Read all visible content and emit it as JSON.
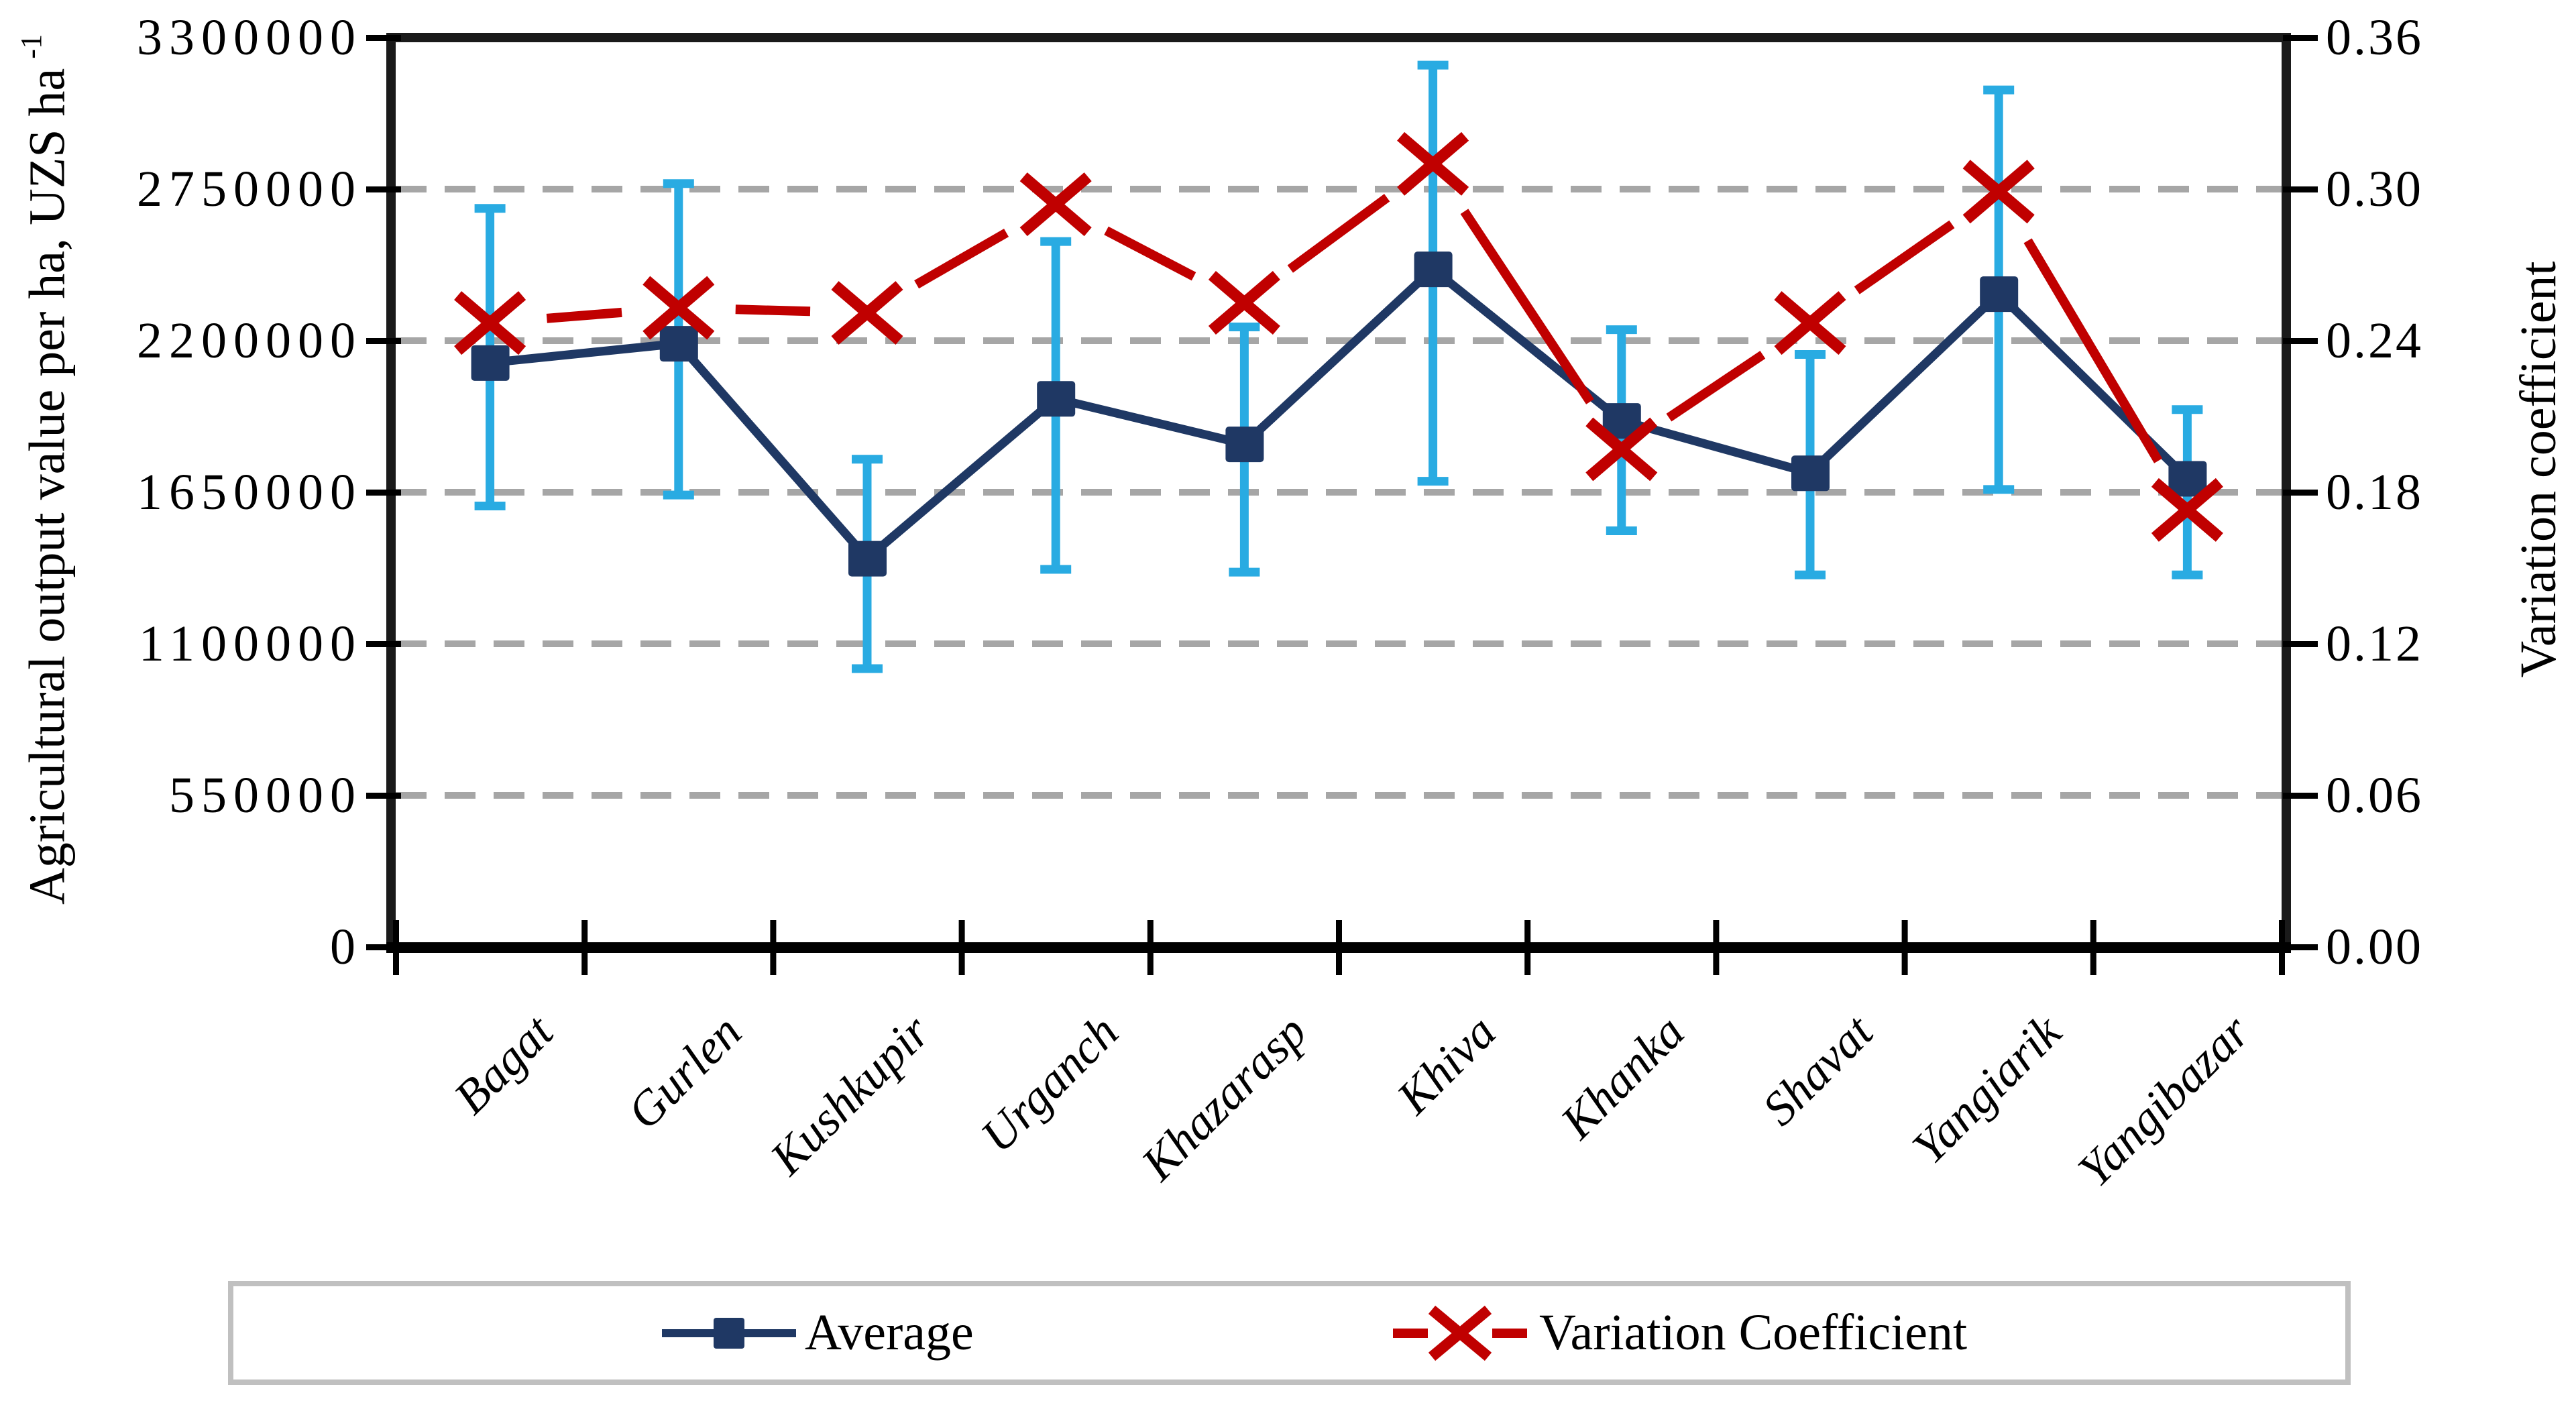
{
  "page": {
    "background": "#FFFFFF"
  },
  "chart_data": {
    "type": "line",
    "title": "",
    "categories": [
      "Bagat",
      "Gurlen",
      "Kushkupir",
      "Urganch",
      "Khazarasp",
      "Khiva",
      "Khanka",
      "Shavat",
      "Yangiarik",
      "Yangibazar"
    ],
    "series": [
      {
        "name": "Average",
        "axis": "left",
        "color": "#1F3864",
        "marker": "square",
        "values": [
          2120000,
          2190000,
          1410000,
          1990000,
          1825000,
          2460000,
          1910000,
          1720000,
          2370000,
          1700000
        ],
        "error_bars": {
          "color": "#29ABE2",
          "upper": [
            2680000,
            2770000,
            1770000,
            2560000,
            2250000,
            3200000,
            2240000,
            2150000,
            3110000,
            1950000
          ],
          "lower": [
            1600000,
            1640000,
            1010000,
            1370000,
            1360000,
            1690000,
            1510000,
            1350000,
            1660000,
            1350000
          ]
        }
      },
      {
        "name": "Variation Coefficient",
        "axis": "right",
        "color": "#C00000",
        "marker": "x",
        "values": [
          0.247,
          0.253,
          0.251,
          0.294,
          0.255,
          0.31,
          0.197,
          0.247,
          0.299,
          0.173
        ]
      }
    ],
    "left_axis": {
      "title_main": "Agricultural output value per ha, UZS ha",
      "title_sup": "-1",
      "min": 0,
      "max": 3300000,
      "ticks": [
        "3300000",
        "2750000",
        "2200000",
        "1650000",
        "1100000",
        "550000",
        "0"
      ],
      "tick_values": [
        3300000,
        2750000,
        2200000,
        1650000,
        1100000,
        550000,
        0
      ]
    },
    "right_axis": {
      "title": "Variation coefficient",
      "min": 0,
      "max": 0.36,
      "ticks": [
        "0.36",
        "0.30",
        "0.24",
        "0.18",
        "0.12",
        "0.06",
        "0.00"
      ],
      "tick_values": [
        0.36,
        0.3,
        0.24,
        0.18,
        0.12,
        0.06,
        0
      ]
    },
    "grid": {
      "horizontal": true,
      "style": "dashed",
      "color": "#A6A6A6"
    },
    "axis_color": "#1A1A1A",
    "legend_position": "bottom"
  }
}
